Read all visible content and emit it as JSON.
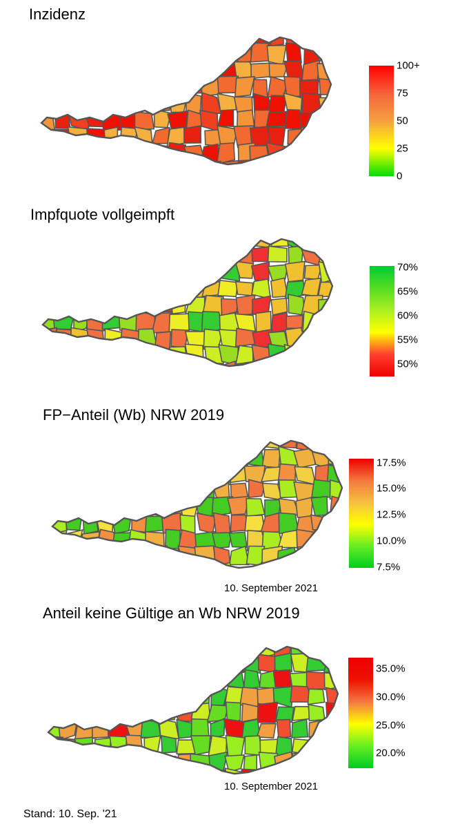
{
  "panels": [
    {
      "title": "Inzidenz",
      "legend_ticks": [
        "100+",
        "75",
        "50",
        "25",
        "0"
      ],
      "gradient": [
        "#ff0000",
        "#f5623a",
        "#f5a040",
        "#ffff00",
        "#00dd00"
      ],
      "map_palette": [
        "#ee1100",
        "#e82010",
        "#f04020",
        "#f26a30",
        "#f39538",
        "#f5b040"
      ],
      "date": ""
    },
    {
      "title": "Impfquote vollgeimpft",
      "legend_ticks": [
        "70%",
        "65%",
        "60%",
        "55%",
        "50%"
      ],
      "gradient": [
        "#00cc33",
        "#55dd22",
        "#aaee22",
        "#ffff00",
        "#ff4030",
        "#ee0000"
      ],
      "map_palette": [
        "#33cc33",
        "#99dd22",
        "#ccee22",
        "#eeee22",
        "#f0c030",
        "#f07040",
        "#ee3030"
      ],
      "date": ""
    },
    {
      "title": "FP−Anteil (Wb) NRW 2019",
      "legend_ticks": [
        "17.5%",
        "15.0%",
        "12.5%",
        "10.0%",
        "7.5%"
      ],
      "gradient": [
        "#ee0000",
        "#f57840",
        "#f5c040",
        "#ffff00",
        "#66ee22",
        "#00cc22"
      ],
      "map_palette": [
        "#f0d040",
        "#f5e040",
        "#f0b040",
        "#f09040",
        "#f07040",
        "#aaee22",
        "#44cc22"
      ],
      "date": "10. September 2021"
    },
    {
      "title": "Anteil keine Gültige an Wb NRW 2019",
      "legend_ticks": [
        "35.0%",
        "30.0%",
        "25.0%",
        "20.0%"
      ],
      "gradient": [
        "#ee0000",
        "#ee1100",
        "#f57840",
        "#ffff00",
        "#66ee22",
        "#00cc22"
      ],
      "map_palette": [
        "#33cc33",
        "#66dd22",
        "#99ee22",
        "#ccee22",
        "#f0a040",
        "#f05030",
        "#ee1111"
      ],
      "date": "10. September 2021"
    }
  ],
  "footer": "Stand: 10. Sep. '21"
}
